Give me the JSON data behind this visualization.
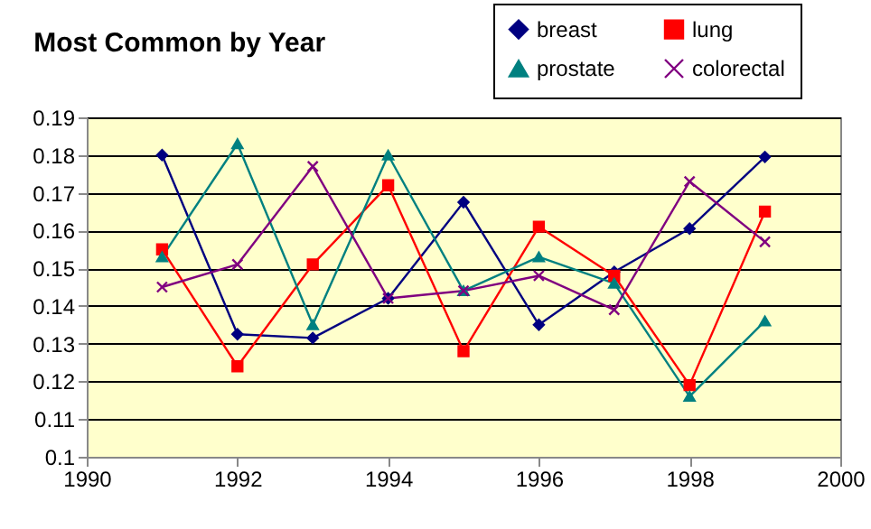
{
  "chart_data": {
    "type": "line",
    "title": "Most Common by Year",
    "x": [
      1991,
      1992,
      1993,
      1994,
      1995,
      1996,
      1997,
      1998,
      1999
    ],
    "series": [
      {
        "name": "breast",
        "color": "#000080",
        "marker": "diamond",
        "values": [
          0.18,
          0.1325,
          0.1315,
          0.142,
          0.1675,
          0.135,
          0.149,
          0.1605,
          0.1795
        ]
      },
      {
        "name": "lung",
        "color": "#ff0000",
        "marker": "square",
        "values": [
          0.155,
          0.124,
          0.151,
          0.172,
          0.128,
          0.161,
          0.148,
          0.119,
          0.165
        ]
      },
      {
        "name": "prostate",
        "color": "#008080",
        "marker": "triangle",
        "values": [
          0.153,
          0.183,
          0.135,
          0.18,
          0.144,
          0.153,
          0.146,
          0.116,
          0.136
        ]
      },
      {
        "name": "colorectal",
        "color": "#800080",
        "marker": "cross",
        "values": [
          0.145,
          0.151,
          0.177,
          0.142,
          0.144,
          0.148,
          0.139,
          0.173,
          0.157
        ]
      }
    ],
    "xlim": [
      1990,
      2000
    ],
    "xticks": [
      1990,
      1992,
      1994,
      1996,
      1998,
      2000
    ],
    "ylim": [
      0.1,
      0.19
    ],
    "yticks": [
      0.1,
      0.11,
      0.12,
      0.13,
      0.14,
      0.15,
      0.16,
      0.17,
      0.18,
      0.19
    ],
    "grid": "y",
    "legend": "top right",
    "line_style": "solid"
  }
}
